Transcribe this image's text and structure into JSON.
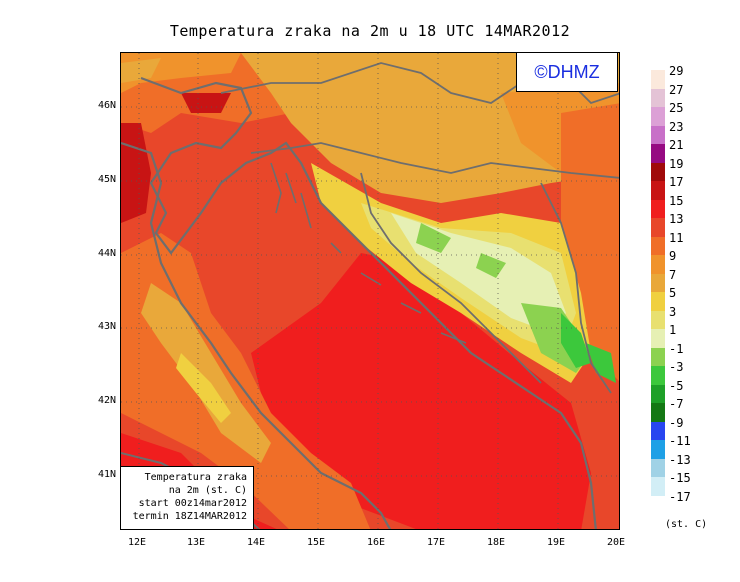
{
  "title": "Temperatura zraka na 2m u 18 UTC 14MAR2012",
  "copyright": "©DHMZ",
  "info_box": {
    "line1": "Temperatura zraka",
    "line2": "na 2m (st. C)",
    "line3": "start 00z14mar2012",
    "line4": "termin 18Z14MAR2012"
  },
  "lat_labels": [
    "46N",
    "45N",
    "44N",
    "43N",
    "42N",
    "41N"
  ],
  "lon_labels": [
    "12E",
    "13E",
    "14E",
    "15E",
    "16E",
    "17E",
    "18E",
    "19E",
    "20E"
  ],
  "legend": {
    "unit": "(st. C)",
    "items": [
      {
        "label": "29",
        "color": "#fbe9dc"
      },
      {
        "label": "27",
        "color": "#e4c3d6"
      },
      {
        "label": "25",
        "color": "#dca0d6"
      },
      {
        "label": "23",
        "color": "#c870c8"
      },
      {
        "label": "21",
        "color": "#960a82"
      },
      {
        "label": "19",
        "color": "#a00a0a"
      },
      {
        "label": "17",
        "color": "#c81414"
      },
      {
        "label": "15",
        "color": "#f01e1e"
      },
      {
        "label": "13",
        "color": "#e8472a"
      },
      {
        "label": "11",
        "color": "#f06e28"
      },
      {
        "label": "9",
        "color": "#f0932c"
      },
      {
        "label": "7",
        "color": "#e9a83a"
      },
      {
        "label": "5",
        "color": "#f0d040"
      },
      {
        "label": "3",
        "color": "#e8e070"
      },
      {
        "label": "1",
        "color": "#e6f0b4"
      },
      {
        "label": "-1",
        "color": "#8cd250"
      },
      {
        "label": "-3",
        "color": "#3cc83c"
      },
      {
        "label": "-5",
        "color": "#1ea028"
      },
      {
        "label": "-7",
        "color": "#147814"
      },
      {
        "label": "-9",
        "color": "#2846f0"
      },
      {
        "label": "-11",
        "color": "#1ea0e6"
      },
      {
        "label": "-13",
        "color": "#a0d2e6"
      },
      {
        "label": "-15",
        "color": "#d2eef6"
      },
      {
        "label": "-17",
        "color": "#ffffff"
      }
    ]
  }
}
